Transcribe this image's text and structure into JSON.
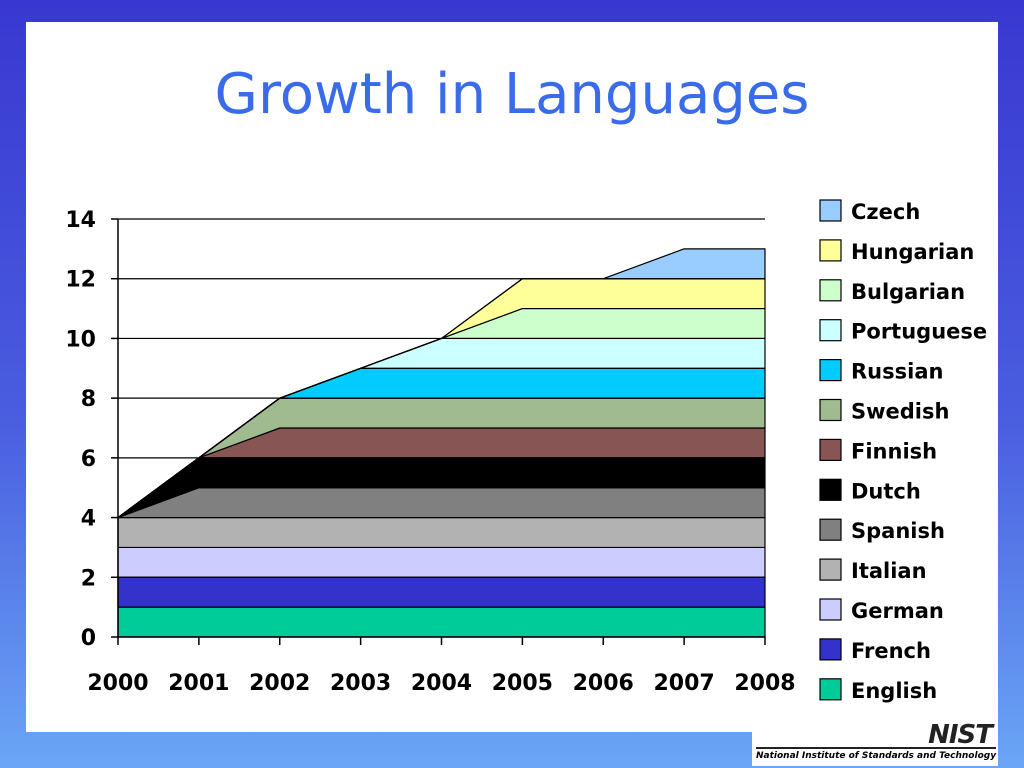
{
  "slide": {
    "title": "Growth in Languages",
    "logo": {
      "mark": "NIST",
      "caption": "National Institute of Standards and Technology"
    }
  },
  "chart_data": {
    "type": "area",
    "stacked": true,
    "title": "Growth in Languages",
    "x": [
      "2000",
      "2001",
      "2002",
      "2003",
      "2004",
      "2005",
      "2006",
      "2007",
      "2008"
    ],
    "ylim": [
      0,
      14
    ],
    "yticks": [
      0,
      2,
      4,
      6,
      8,
      10,
      12,
      14
    ],
    "grid": true,
    "legend_position": "right",
    "series": [
      {
        "name": "English",
        "color": "#00cc99",
        "values": [
          1,
          1,
          1,
          1,
          1,
          1,
          1,
          1,
          1
        ]
      },
      {
        "name": "French",
        "color": "#3333cc",
        "values": [
          1,
          1,
          1,
          1,
          1,
          1,
          1,
          1,
          1
        ]
      },
      {
        "name": "German",
        "color": "#ccccff",
        "values": [
          1,
          1,
          1,
          1,
          1,
          1,
          1,
          1,
          1
        ]
      },
      {
        "name": "Italian",
        "color": "#b2b2b2",
        "values": [
          1,
          1,
          1,
          1,
          1,
          1,
          1,
          1,
          1
        ]
      },
      {
        "name": "Spanish",
        "color": "#808080",
        "values": [
          0,
          1,
          1,
          1,
          1,
          1,
          1,
          1,
          1
        ]
      },
      {
        "name": "Dutch",
        "color": "#000000",
        "values": [
          0,
          1,
          1,
          1,
          1,
          1,
          1,
          1,
          1
        ]
      },
      {
        "name": "Finnish",
        "color": "#885555",
        "values": [
          0,
          0,
          1,
          1,
          1,
          1,
          1,
          1,
          1
        ]
      },
      {
        "name": "Swedish",
        "color": "#a0bb90",
        "values": [
          0,
          0,
          1,
          1,
          1,
          1,
          1,
          1,
          1
        ]
      },
      {
        "name": "Russian",
        "color": "#00ccff",
        "values": [
          0,
          0,
          0,
          1,
          1,
          1,
          1,
          1,
          1
        ]
      },
      {
        "name": "Portuguese",
        "color": "#ccffff",
        "values": [
          0,
          0,
          0,
          0,
          1,
          1,
          1,
          1,
          1
        ]
      },
      {
        "name": "Bulgarian",
        "color": "#ccffcc",
        "values": [
          0,
          0,
          0,
          0,
          0,
          1,
          1,
          1,
          1
        ]
      },
      {
        "name": "Hungarian",
        "color": "#ffff99",
        "values": [
          0,
          0,
          0,
          0,
          0,
          1,
          1,
          1,
          1
        ]
      },
      {
        "name": "Czech",
        "color": "#99ccff",
        "values": [
          0,
          0,
          0,
          0,
          0,
          0,
          0,
          1,
          1
        ]
      }
    ]
  }
}
